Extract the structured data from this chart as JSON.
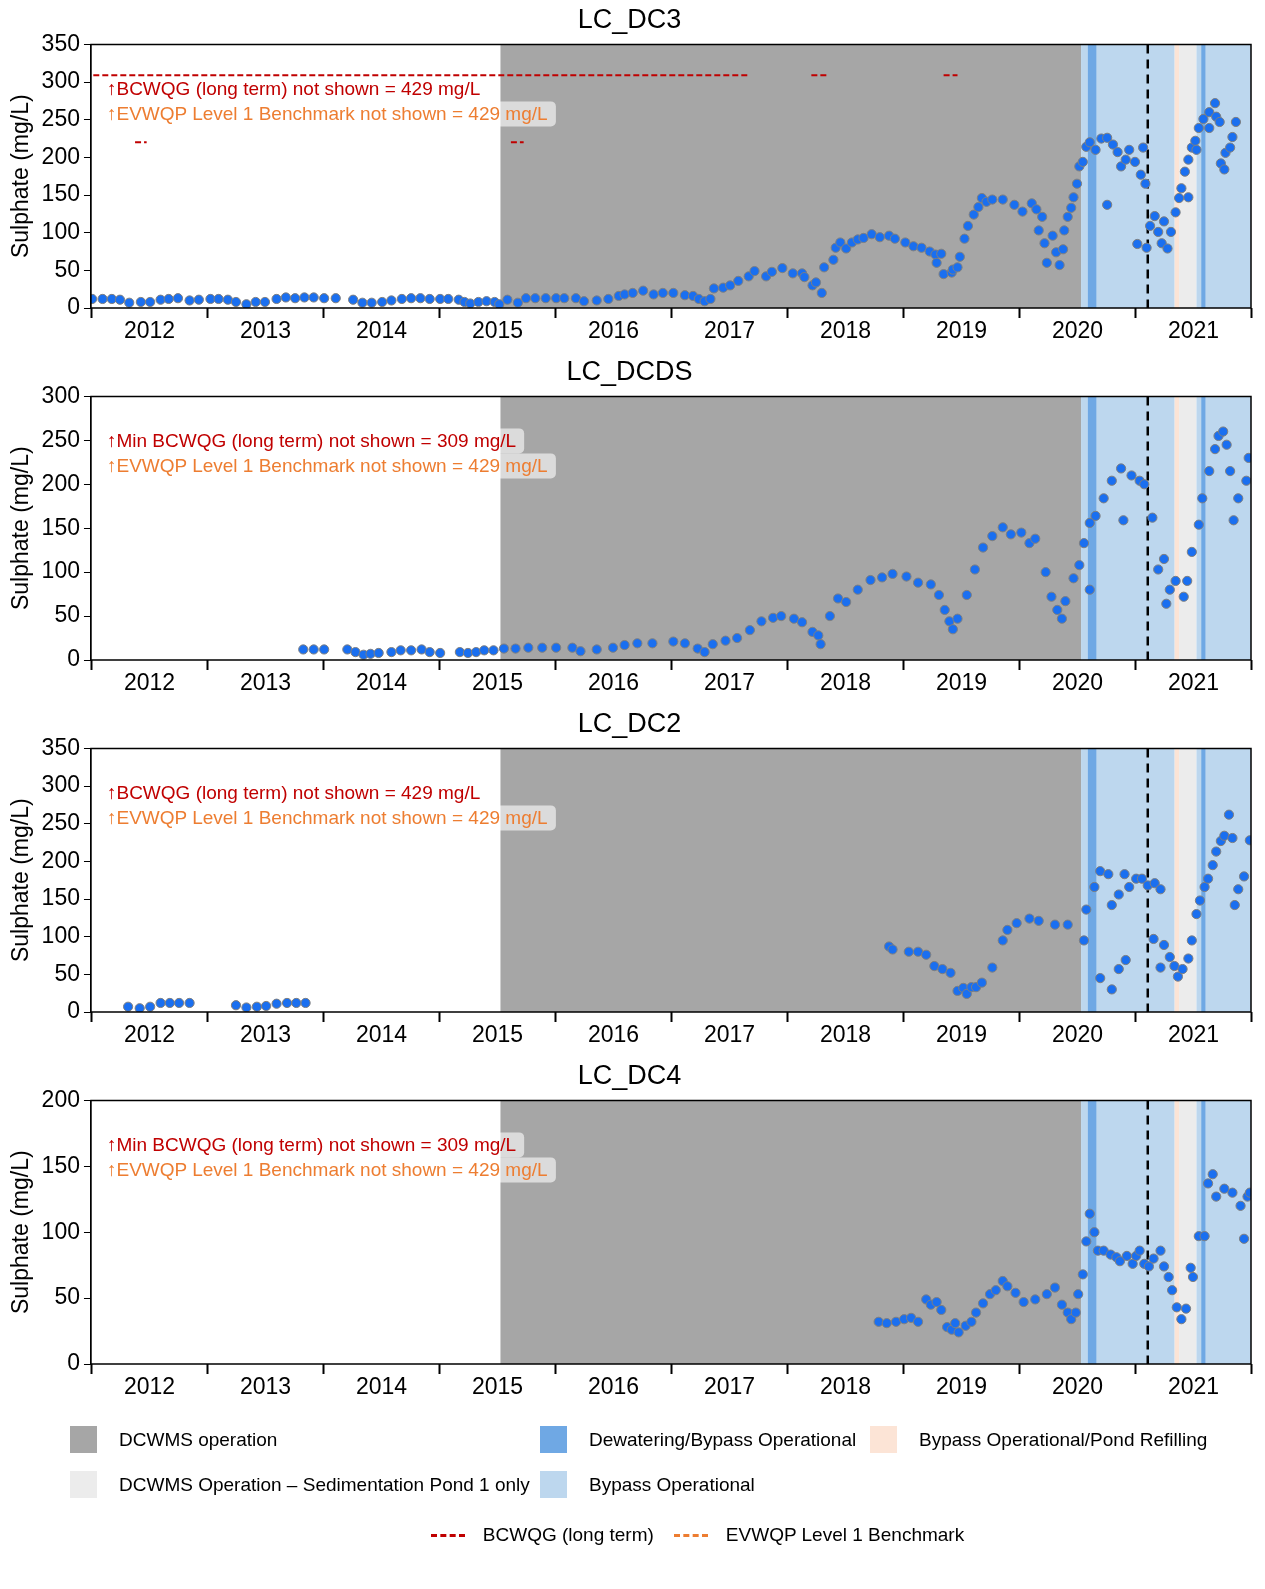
{
  "chart_data": [
    {
      "type": "scatter",
      "title": "LC_DC3",
      "ylabel": "Sulphate (mg/L)",
      "marker": "circle",
      "xlim": [
        2012,
        2022
      ],
      "xticks": [
        {
          "value": 2012,
          "label": null
        },
        {
          "value": 2012.5,
          "label": "2012"
        },
        {
          "value": 2013,
          "label": null
        },
        {
          "value": 2013.5,
          "label": "2013"
        },
        {
          "value": 2014,
          "label": null
        },
        {
          "value": 2014.5,
          "label": "2014"
        },
        {
          "value": 2015,
          "label": null
        },
        {
          "value": 2015.5,
          "label": "2015"
        },
        {
          "value": 2016,
          "label": null
        },
        {
          "value": 2016.5,
          "label": "2016"
        },
        {
          "value": 2017,
          "label": null
        },
        {
          "value": 2017.5,
          "label": "2017"
        },
        {
          "value": 2018,
          "label": null
        },
        {
          "value": 2018.5,
          "label": "2018"
        },
        {
          "value": 2019,
          "label": null
        },
        {
          "value": 2019.5,
          "label": "2019"
        },
        {
          "value": 2020,
          "label": null
        },
        {
          "value": 2020.5,
          "label": "2020"
        },
        {
          "value": 2021,
          "label": null
        },
        {
          "value": 2021.5,
          "label": "2021"
        },
        {
          "value": 2022,
          "label": null
        }
      ],
      "ylim": [
        0,
        350
      ],
      "yticks": [
        0,
        50,
        100,
        150,
        200,
        250,
        300,
        350
      ],
      "annotations": [
        "↑BCWQG (long term) not shown = 429 mg/L",
        "↑EVWQP Level 1 Benchmark not shown = 429 mg/L"
      ],
      "bands": [
        {
          "axis": "x",
          "from": 2015.53,
          "to": 2020.535,
          "color": "#a6a6a6"
        },
        {
          "axis": "x",
          "from": 2020.59,
          "to": 2020.67,
          "color": "#6fa8e4"
        },
        {
          "axis": "x",
          "from": 2021.57,
          "to": 2021.61,
          "color": "#6fa8e4"
        },
        {
          "axis": "x",
          "from": 2021.34,
          "to": 2021.38,
          "color": "#fce4d6"
        },
        {
          "axis": "x",
          "from": 2021.38,
          "to": 2021.53,
          "color": "#ececec"
        },
        {
          "axis": "x",
          "from": 2020.535,
          "to": 2020.59,
          "color": "#bdd7ee"
        },
        {
          "axis": "x",
          "from": 2020.67,
          "to": 2021.34,
          "color": "#bdd7ee"
        },
        {
          "axis": "x",
          "from": 2021.53,
          "to": 2021.57,
          "color": "#bdd7ee"
        },
        {
          "axis": "x",
          "from": 2021.61,
          "to": 2022,
          "color": "#bdd7ee"
        }
      ],
      "ref_lines": [
        {
          "axis": "x",
          "value": 2021.11,
          "color": "#000000",
          "line_style": "dashed"
        }
      ],
      "series": [
        {
          "color": "#1a6ff0",
          "x": [
            2012.01,
            2012.1,
            2012.18,
            2012.25,
            2012.33,
            2012.43,
            2012.51,
            2012.6,
            2012.67,
            2012.75,
            2012.85,
            2012.93,
            2013.03,
            2013.1,
            2013.18,
            2013.25,
            2013.34,
            2013.42,
            2013.5,
            2013.6,
            2013.68,
            2013.76,
            2013.84,
            2013.92,
            2014.01,
            2014.11,
            2014.26,
            2014.34,
            2014.42,
            2014.51,
            2014.59,
            2014.68,
            2014.76,
            2014.84,
            2014.92,
            2015.01,
            2015.08,
            2015.17,
            2015.22,
            2015.27,
            2015.34,
            2015.41,
            2015.48,
            2015.52,
            2015.59,
            2015.68,
            2015.75,
            2015.83,
            2015.92,
            2016.01,
            2016.08,
            2016.18,
            2016.25,
            2016.36,
            2016.46,
            2016.55,
            2016.6,
            2016.67,
            2016.76,
            2016.85,
            2016.93,
            2017.02,
            2017.12,
            2017.19,
            2017.24,
            2017.29,
            2017.34,
            2017.37,
            2017.45,
            2017.51,
            2017.58,
            2017.67,
            2017.72,
            2017.82,
            2017.87,
            2017.96,
            2018.05,
            2018.13,
            2018.15,
            2018.22,
            2018.25,
            2018.3,
            2018.32,
            2018.4,
            2018.42,
            2018.46,
            2018.51,
            2018.56,
            2018.61,
            2018.66,
            2018.73,
            2018.8,
            2018.88,
            2018.93,
            2019.02,
            2019.09,
            2019.16,
            2019.23,
            2019.28,
            2019.33,
            2019.29,
            2019.35,
            2019.42,
            2019.43,
            2019.47,
            2019.49,
            2019.53,
            2019.56,
            2019.61,
            2019.65,
            2019.68,
            2019.72,
            2019.77,
            2019.86,
            2019.96,
            2020.03,
            2020.11,
            2020.15,
            2020.2,
            2020.17,
            2020.22,
            2020.24,
            2020.29,
            2020.32,
            2020.35,
            2020.38,
            2020.39,
            2020.42,
            2020.45,
            2020.47,
            2020.5,
            2020.52,
            2020.55,
            2020.58,
            2020.61,
            2020.66,
            2020.71,
            2020.76,
            2020.76,
            2020.81,
            2020.85,
            2020.88,
            2020.92,
            2020.95,
            2021.0,
            2021.02,
            2021.07,
            2021.05,
            2021.09,
            2021.1,
            2021.13,
            2021.17,
            2021.2,
            2021.23,
            2021.25,
            2021.28,
            2021.31,
            2021.35,
            2021.38,
            2021.4,
            2021.43,
            2021.46,
            2021.46,
            2021.49,
            2021.52,
            2021.53,
            2021.55,
            2021.59,
            2021.64,
            2021.69,
            2021.64,
            2021.7,
            2021.73,
            2021.74,
            2021.77,
            2021.78,
            2021.82,
            2021.84,
            2021.87
          ],
          "values": [
            12,
            12,
            12,
            11,
            7,
            8,
            8,
            11,
            12,
            13,
            10,
            11,
            12,
            12,
            11,
            8,
            5,
            8,
            8,
            12,
            14,
            13,
            14,
            14,
            13,
            13,
            11,
            7,
            7,
            8,
            10,
            12,
            13,
            13,
            12,
            12,
            12,
            11,
            8,
            6,
            8,
            9,
            8,
            5,
            11,
            7,
            13,
            13,
            13,
            13,
            13,
            13,
            9,
            10,
            12,
            16,
            18,
            20,
            23,
            18,
            20,
            20,
            17,
            16,
            12,
            9,
            12,
            26,
            27,
            30,
            36,
            42,
            49,
            42,
            48,
            53,
            46,
            46,
            41,
            30,
            34,
            20,
            54,
            64,
            80,
            87,
            79,
            87,
            91,
            93,
            98,
            94,
            96,
            92,
            87,
            82,
            80,
            75,
            71,
            72,
            60,
            45,
            47,
            51,
            54,
            68,
            92,
            109,
            124,
            134,
            146,
            141,
            144,
            144,
            137,
            128,
            139,
            131,
            121,
            103,
            86,
            60,
            96,
            74,
            57,
            78,
            103,
            121,
            133,
            147,
            165,
            188,
            194,
            214,
            220,
            210,
            225,
            226,
            137,
            217,
            207,
            188,
            197,
            210,
            194,
            85,
            213,
            177,
            165,
            80,
            109,
            122,
            101,
            86,
            115,
            79,
            101,
            127,
            146,
            159,
            181,
            197,
            147,
            213,
            222,
            210,
            239,
            251,
            260,
            272,
            239,
            254,
            247,
            192,
            184,
            206,
            213,
            227,
            247
          ]
        },
        {
          "name": "BCWQG (long term)",
          "type": "line",
          "marker": "none",
          "line_style": "dashed",
          "color": "#c00000",
          "x": [
            2012.02,
            2017.67,
            2017.68,
            2018.21,
            2018.35,
            2018.36,
            2019.35,
            2019.47
          ],
          "values": [
            309,
            309,
            null,
            309,
            309,
            null,
            309,
            309
          ]
        },
        {
          "type": "line",
          "marker": "none",
          "line_style": "dashed",
          "color": "#c00000",
          "x": [
            2012.38,
            2012.48,
            2012.49,
            2015.62,
            2015.73
          ],
          "values": [
            220,
            220,
            null,
            220,
            220
          ]
        },
        {
          "name": "EVWQP Level 1 Benchmark",
          "type": "line",
          "marker": "none",
          "line_style": "dashed",
          "color": "#ed7d31"
        }
      ]
    },
    {
      "type": "scatter",
      "title": "LC_DCDS",
      "ylabel": "Sulphate (mg/L)",
      "marker": "circle",
      "xlim": [
        2012,
        2022
      ],
      "xticks": [
        {
          "value": 2012,
          "label": null
        },
        {
          "value": 2012.5,
          "label": "2012"
        },
        {
          "value": 2013,
          "label": null
        },
        {
          "value": 2013.5,
          "label": "2013"
        },
        {
          "value": 2014,
          "label": null
        },
        {
          "value": 2014.5,
          "label": "2014"
        },
        {
          "value": 2015,
          "label": null
        },
        {
          "value": 2015.5,
          "label": "2015"
        },
        {
          "value": 2016,
          "label": null
        },
        {
          "value": 2016.5,
          "label": "2016"
        },
        {
          "value": 2017,
          "label": null
        },
        {
          "value": 2017.5,
          "label": "2017"
        },
        {
          "value": 2018,
          "label": null
        },
        {
          "value": 2018.5,
          "label": "2018"
        },
        {
          "value": 2019,
          "label": null
        },
        {
          "value": 2019.5,
          "label": "2019"
        },
        {
          "value": 2020,
          "label": null
        },
        {
          "value": 2020.5,
          "label": "2020"
        },
        {
          "value": 2021,
          "label": null
        },
        {
          "value": 2021.5,
          "label": "2021"
        },
        {
          "value": 2022,
          "label": null
        }
      ],
      "ylim": [
        0,
        300
      ],
      "yticks": [
        0,
        50,
        100,
        150,
        200,
        250,
        300
      ],
      "annotations": [
        "↑Min BCWQG (long term) not shown = 309 mg/L",
        "↑EVWQP Level 1 Benchmark not shown = 429 mg/L"
      ],
      "bands": [
        {
          "axis": "x",
          "from": 2015.53,
          "to": 2020.535,
          "color": "#a6a6a6"
        },
        {
          "axis": "x",
          "from": 2020.59,
          "to": 2020.67,
          "color": "#6fa8e4"
        },
        {
          "axis": "x",
          "from": 2021.57,
          "to": 2021.61,
          "color": "#6fa8e4"
        },
        {
          "axis": "x",
          "from": 2021.34,
          "to": 2021.38,
          "color": "#fce4d6"
        },
        {
          "axis": "x",
          "from": 2021.38,
          "to": 2021.53,
          "color": "#ececec"
        },
        {
          "axis": "x",
          "from": 2020.535,
          "to": 2020.59,
          "color": "#bdd7ee"
        },
        {
          "axis": "x",
          "from": 2020.67,
          "to": 2021.34,
          "color": "#bdd7ee"
        },
        {
          "axis": "x",
          "from": 2021.53,
          "to": 2021.57,
          "color": "#bdd7ee"
        },
        {
          "axis": "x",
          "from": 2021.61,
          "to": 2022,
          "color": "#bdd7ee"
        }
      ],
      "ref_lines": [
        {
          "axis": "x",
          "value": 2021.11,
          "color": "#000000",
          "line_style": "dashed"
        }
      ],
      "series": [
        {
          "color": "#1a6ff0",
          "x": [
            2013.83,
            2013.92,
            2014.01,
            2014.21,
            2014.28,
            2014.35,
            2014.41,
            2014.48,
            2014.59,
            2014.67,
            2014.76,
            2014.85,
            2014.92,
            2015.01,
            2015.18,
            2015.25,
            2015.32,
            2015.39,
            2015.47,
            2015.56,
            2015.66,
            2015.77,
            2015.89,
            2016.01,
            2016.15,
            2016.22,
            2016.36,
            2016.5,
            2016.6,
            2016.71,
            2016.84,
            2017.02,
            2017.12,
            2017.23,
            2017.29,
            2017.36,
            2017.47,
            2017.57,
            2017.68,
            2017.78,
            2017.88,
            2017.95,
            2018.06,
            2018.13,
            2018.22,
            2018.27,
            2018.29,
            2018.37,
            2018.44,
            2018.51,
            2018.61,
            2018.72,
            2018.82,
            2018.91,
            2019.03,
            2019.13,
            2019.24,
            2019.31,
            2019.36,
            2019.4,
            2019.43,
            2019.47,
            2019.55,
            2019.62,
            2019.69,
            2019.77,
            2019.86,
            2019.93,
            2020.02,
            2020.09,
            2020.14,
            2020.23,
            2020.28,
            2020.33,
            2020.37,
            2020.4,
            2020.47,
            2020.52,
            2020.56,
            2020.61,
            2020.61,
            2020.66,
            2020.73,
            2020.8,
            2020.88,
            2020.9,
            2020.97,
            2021.04,
            2021.08,
            2021.15,
            2021.2,
            2021.25,
            2021.27,
            2021.3,
            2021.35,
            2021.42,
            2021.45,
            2021.49,
            2021.55,
            2021.58,
            2021.64,
            2021.69,
            2021.72,
            2021.76,
            2021.79,
            2021.82,
            2021.85,
            2021.89,
            2021.96,
            2021.98
          ],
          "values": [
            12,
            12,
            12,
            12,
            9,
            6,
            7,
            8,
            9,
            11,
            11,
            12,
            9,
            8,
            9,
            8,
            9,
            11,
            11,
            13,
            13,
            14,
            14,
            14,
            14,
            10,
            12,
            14,
            17,
            19,
            19,
            21,
            19,
            13,
            9,
            18,
            22,
            25,
            34,
            44,
            48,
            50,
            47,
            43,
            32,
            28,
            18,
            50,
            70,
            66,
            80,
            91,
            94,
            98,
            95,
            88,
            86,
            74,
            57,
            44,
            35,
            47,
            74,
            103,
            128,
            141,
            151,
            143,
            145,
            133,
            138,
            100,
            72,
            57,
            47,
            67,
            93,
            108,
            133,
            156,
            80,
            164,
            184,
            204,
            218,
            159,
            210,
            204,
            200,
            162,
            103,
            115,
            64,
            80,
            90,
            72,
            90,
            123,
            154,
            184,
            215,
            240,
            255,
            260,
            245,
            215,
            159,
            184,
            204,
            230
          ]
        }
      ]
    },
    {
      "type": "scatter",
      "title": "LC_DC2",
      "ylabel": "Sulphate (mg/L)",
      "marker": "circle",
      "xlim": [
        2012,
        2022
      ],
      "xticks": [
        {
          "value": 2012,
          "label": null
        },
        {
          "value": 2012.5,
          "label": "2012"
        },
        {
          "value": 2013,
          "label": null
        },
        {
          "value": 2013.5,
          "label": "2013"
        },
        {
          "value": 2014,
          "label": null
        },
        {
          "value": 2014.5,
          "label": "2014"
        },
        {
          "value": 2015,
          "label": null
        },
        {
          "value": 2015.5,
          "label": "2015"
        },
        {
          "value": 2016,
          "label": null
        },
        {
          "value": 2016.5,
          "label": "2016"
        },
        {
          "value": 2017,
          "label": null
        },
        {
          "value": 2017.5,
          "label": "2017"
        },
        {
          "value": 2018,
          "label": null
        },
        {
          "value": 2018.5,
          "label": "2018"
        },
        {
          "value": 2019,
          "label": null
        },
        {
          "value": 2019.5,
          "label": "2019"
        },
        {
          "value": 2020,
          "label": null
        },
        {
          "value": 2020.5,
          "label": "2020"
        },
        {
          "value": 2021,
          "label": null
        },
        {
          "value": 2021.5,
          "label": "2021"
        },
        {
          "value": 2022,
          "label": null
        }
      ],
      "ylim": [
        0,
        350
      ],
      "yticks": [
        0,
        50,
        100,
        150,
        200,
        250,
        300,
        350
      ],
      "annotations": [
        "↑BCWQG (long term) not shown = 429 mg/L",
        "↑EVWQP Level 1 Benchmark not shown = 429 mg/L"
      ],
      "bands": [
        {
          "axis": "x",
          "from": 2015.53,
          "to": 2020.535,
          "color": "#a6a6a6"
        },
        {
          "axis": "x",
          "from": 2020.59,
          "to": 2020.67,
          "color": "#6fa8e4"
        },
        {
          "axis": "x",
          "from": 2021.57,
          "to": 2021.61,
          "color": "#6fa8e4"
        },
        {
          "axis": "x",
          "from": 2021.34,
          "to": 2021.38,
          "color": "#fce4d6"
        },
        {
          "axis": "x",
          "from": 2021.38,
          "to": 2021.53,
          "color": "#ececec"
        },
        {
          "axis": "x",
          "from": 2020.535,
          "to": 2020.59,
          "color": "#bdd7ee"
        },
        {
          "axis": "x",
          "from": 2020.67,
          "to": 2021.34,
          "color": "#bdd7ee"
        },
        {
          "axis": "x",
          "from": 2021.53,
          "to": 2021.57,
          "color": "#bdd7ee"
        },
        {
          "axis": "x",
          "from": 2021.61,
          "to": 2022,
          "color": "#bdd7ee"
        }
      ],
      "ref_lines": [
        {
          "axis": "x",
          "value": 2021.11,
          "color": "#000000",
          "line_style": "dashed"
        }
      ],
      "series": [
        {
          "color": "#1a6ff0",
          "x": [
            2012.32,
            2012.42,
            2012.51,
            2012.6,
            2012.68,
            2012.76,
            2012.85,
            2013.25,
            2013.34,
            2013.43,
            2013.51,
            2013.6,
            2013.69,
            2013.77,
            2013.85,
            2018.88,
            2018.91,
            2019.05,
            2019.13,
            2019.2,
            2019.27,
            2019.34,
            2019.41,
            2019.47,
            2019.52,
            2019.55,
            2019.59,
            2019.63,
            2019.68,
            2019.77,
            2019.86,
            2019.9,
            2019.98,
            2020.09,
            2020.17,
            2020.31,
            2020.42,
            2020.56,
            2020.7,
            2020.8,
            2020.86,
            2020.92,
            2020.58,
            2020.65,
            2020.7,
            2020.77,
            2020.8,
            2020.86,
            2020.91,
            2020.95,
            2021.01,
            2021.06,
            2021.11,
            2021.17,
            2021.22,
            2021.16,
            2021.22,
            2021.25,
            2021.3,
            2021.34,
            2021.37,
            2021.41,
            2021.46,
            2021.49,
            2021.53,
            2021.56,
            2021.6,
            2021.63,
            2021.67,
            2021.7,
            2021.74,
            2021.77,
            2021.81,
            2021.84,
            2021.86,
            2021.89,
            2021.94,
            2021.99
          ],
          "values": [
            7,
            5,
            7,
            12,
            12,
            12,
            12,
            9,
            6,
            7,
            8,
            11,
            12,
            12,
            12,
            87,
            83,
            80,
            80,
            76,
            61,
            57,
            52,
            28,
            32,
            24,
            33,
            33,
            39,
            59,
            95,
            109,
            118,
            124,
            121,
            116,
            116,
            95,
            45,
            30,
            57,
            69,
            136,
            166,
            187,
            183,
            142,
            156,
            183,
            166,
            177,
            177,
            168,
            171,
            163,
            97,
            59,
            89,
            73,
            61,
            47,
            57,
            71,
            95,
            130,
            148,
            166,
            177,
            195,
            213,
            227,
            234,
            262,
            231,
            142,
            163,
            180,
            228
          ]
        }
      ]
    },
    {
      "type": "scatter",
      "title": "LC_DC4",
      "ylabel": "Sulphate (mg/L)",
      "marker": "circle",
      "legend": "bottom",
      "xlim": [
        2012,
        2022
      ],
      "xticks": [
        {
          "value": 2012,
          "label": null
        },
        {
          "value": 2012.5,
          "label": "2012"
        },
        {
          "value": 2013,
          "label": null
        },
        {
          "value": 2013.5,
          "label": "2013"
        },
        {
          "value": 2014,
          "label": null
        },
        {
          "value": 2014.5,
          "label": "2014"
        },
        {
          "value": 2015,
          "label": null
        },
        {
          "value": 2015.5,
          "label": "2015"
        },
        {
          "value": 2016,
          "label": null
        },
        {
          "value": 2016.5,
          "label": "2016"
        },
        {
          "value": 2017,
          "label": null
        },
        {
          "value": 2017.5,
          "label": "2017"
        },
        {
          "value": 2018,
          "label": null
        },
        {
          "value": 2018.5,
          "label": "2018"
        },
        {
          "value": 2019,
          "label": null
        },
        {
          "value": 2019.5,
          "label": "2019"
        },
        {
          "value": 2020,
          "label": null
        },
        {
          "value": 2020.5,
          "label": "2020"
        },
        {
          "value": 2021,
          "label": null
        },
        {
          "value": 2021.5,
          "label": "2021"
        },
        {
          "value": 2022,
          "label": null
        }
      ],
      "ylim": [
        0,
        200
      ],
      "yticks": [
        0,
        50,
        100,
        150,
        200
      ],
      "annotations": [
        "↑Min BCWQG (long term) not shown = 309 mg/L",
        "↑EVWQP Level 1 Benchmark not shown = 429 mg/L"
      ],
      "bands": [
        {
          "axis": "x",
          "from": 2015.53,
          "to": 2020.535,
          "label": "DCWMS operation",
          "color": "#a6a6a6"
        },
        {
          "axis": "x",
          "from": 2020.59,
          "to": 2020.67,
          "label": "Dewatering/Bypass Operational",
          "color": "#6fa8e4"
        },
        {
          "axis": "x",
          "from": 2021.34,
          "to": 2021.38,
          "label": "Bypass Operational/Pond Refilling",
          "color": "#fce4d6"
        },
        {
          "axis": "x",
          "from": 2021.38,
          "to": 2021.53,
          "label": "DCWMS Operation – Sedimentation Pond 1 only",
          "color": "#ececec"
        },
        {
          "axis": "x",
          "from": 2020.67,
          "to": 2021.34,
          "label": "Bypass Operational",
          "color": "#bdd7ee"
        },
        {
          "axis": "x",
          "from": 2021.57,
          "to": 2021.61,
          "color": "#6fa8e4"
        },
        {
          "axis": "x",
          "from": 2020.535,
          "to": 2020.59,
          "color": "#bdd7ee"
        },
        {
          "axis": "x",
          "from": 2021.53,
          "to": 2021.57,
          "color": "#bdd7ee"
        },
        {
          "axis": "x",
          "from": 2021.61,
          "to": 2022,
          "color": "#bdd7ee"
        }
      ],
      "ref_lines": [
        {
          "axis": "x",
          "value": 2021.11,
          "color": "#000000",
          "line_style": "dashed"
        }
      ],
      "series": [
        {
          "color": "#1a6ff0",
          "x": [
            2018.79,
            2018.86,
            2018.94,
            2019.01,
            2019.07,
            2019.13,
            2019.2,
            2019.24,
            2019.29,
            2019.33,
            2019.38,
            2019.42,
            2019.45,
            2019.48,
            2019.54,
            2019.59,
            2019.63,
            2019.69,
            2019.75,
            2019.8,
            2019.86,
            2019.9,
            2019.97,
            2020.04,
            2020.14,
            2020.24,
            2020.31,
            2020.37,
            2020.42,
            2020.45,
            2020.49,
            2020.51,
            2020.55,
            2020.58,
            2020.61,
            2020.65,
            2020.68,
            2020.73,
            2020.79,
            2020.84,
            2020.87,
            2020.93,
            2020.98,
            2021.01,
            2021.04,
            2021.08,
            2021.12,
            2021.16,
            2021.22,
            2021.25,
            2021.29,
            2021.32,
            2021.36,
            2021.4,
            2021.44,
            2021.48,
            2021.5,
            2021.55,
            2021.6,
            2021.63,
            2021.67,
            2021.7,
            2021.77,
            2021.84,
            2021.91,
            2021.94,
            2021.97,
            2021.99
          ],
          "values": [
            32,
            31,
            32,
            34,
            35,
            32,
            49,
            45,
            47,
            41,
            28,
            26,
            31,
            24,
            29,
            32,
            39,
            46,
            53,
            56,
            63,
            59,
            54,
            47,
            49,
            53,
            58,
            45,
            39,
            34,
            39,
            53,
            68,
            93,
            114,
            100,
            86,
            86,
            83,
            81,
            78,
            82,
            76,
            82,
            86,
            76,
            74,
            80,
            86,
            74,
            66,
            56,
            43,
            34,
            42,
            73,
            66,
            97,
            97,
            137,
            144,
            127,
            133,
            130,
            120,
            95,
            127,
            130
          ]
        }
      ]
    }
  ]
}
